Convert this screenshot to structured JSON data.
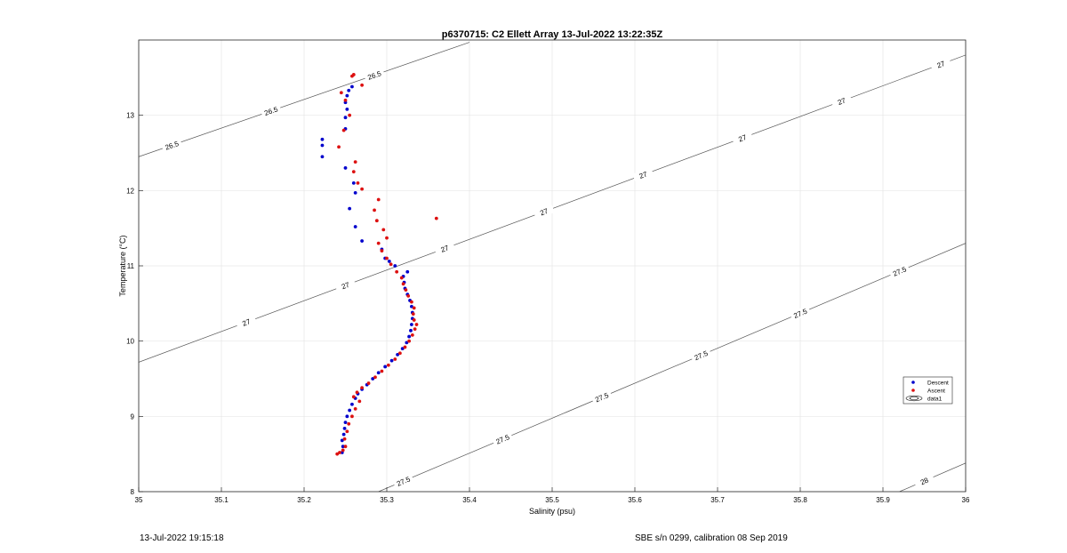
{
  "chart_data": {
    "type": "scatter",
    "title": "p6370715: C2 Ellett Array 13-Jul-2022 13:22:35Z",
    "xlabel": "Salinity (psu)",
    "ylabel": "Temperature (°C)",
    "xlim": [
      35,
      36
    ],
    "ylim": [
      8,
      14
    ],
    "x_ticks": [
      35,
      35.1,
      35.2,
      35.3,
      35.4,
      35.5,
      35.6,
      35.7,
      35.8,
      35.9,
      36
    ],
    "x_tick_labels": [
      "35",
      "35.1",
      "35.2",
      "35.3",
      "35.4",
      "35.5",
      "35.6",
      "35.7",
      "35.8",
      "35.9",
      "36"
    ],
    "y_ticks": [
      8,
      9,
      10,
      11,
      12,
      13
    ],
    "y_tick_labels": [
      "8",
      "9",
      "10",
      "11",
      "12",
      "13"
    ],
    "grid": true,
    "legend_position": "right",
    "legend": [
      {
        "label": "Descent",
        "color": "#0000cc",
        "kind": "dot"
      },
      {
        "label": "Ascent",
        "color": "#dd1111",
        "kind": "dot"
      },
      {
        "label": "data1",
        "color": "#000000",
        "kind": "contour"
      }
    ],
    "contours": [
      {
        "label": "26.5",
        "points": [
          [
            35.0,
            12.45
          ],
          [
            35.4,
            13.97
          ]
        ],
        "label_x": [
          35.04,
          35.16,
          35.285
        ]
      },
      {
        "label": "27",
        "points": [
          [
            35.0,
            9.72
          ],
          [
            36.0,
            13.8
          ]
        ],
        "label_x": [
          35.13,
          35.25,
          35.37,
          35.49,
          35.61,
          35.73,
          35.85,
          35.97
        ]
      },
      {
        "label": "27.5",
        "points": [
          [
            35.29,
            8.0
          ],
          [
            36.0,
            11.3
          ]
        ],
        "label_x": [
          35.32,
          35.44,
          35.56,
          35.68,
          35.8,
          35.92
        ]
      },
      {
        "label": "28",
        "points": [
          [
            35.92,
            8.0
          ],
          [
            36.0,
            8.38
          ]
        ],
        "label_x": [
          35.95
        ]
      }
    ],
    "series": [
      {
        "name": "Descent",
        "color": "#0000cc",
        "points": [
          [
            35.246,
            8.52
          ],
          [
            35.247,
            8.6
          ],
          [
            35.246,
            8.68
          ],
          [
            35.248,
            8.76
          ],
          [
            35.249,
            8.84
          ],
          [
            35.25,
            8.92
          ],
          [
            35.252,
            9.0
          ],
          [
            35.255,
            9.08
          ],
          [
            35.258,
            9.16
          ],
          [
            35.262,
            9.24
          ],
          [
            35.265,
            9.3
          ],
          [
            35.27,
            9.36
          ],
          [
            35.276,
            9.42
          ],
          [
            35.283,
            9.5
          ],
          [
            35.29,
            9.58
          ],
          [
            35.298,
            9.66
          ],
          [
            35.306,
            9.74
          ],
          [
            35.313,
            9.82
          ],
          [
            35.319,
            9.9
          ],
          [
            35.324,
            9.98
          ],
          [
            35.327,
            10.06
          ],
          [
            35.329,
            10.14
          ],
          [
            35.33,
            10.22
          ],
          [
            35.331,
            10.3
          ],
          [
            35.331,
            10.38
          ],
          [
            35.33,
            10.46
          ],
          [
            35.328,
            10.54
          ],
          [
            35.325,
            10.62
          ],
          [
            35.322,
            10.7
          ],
          [
            35.321,
            10.78
          ],
          [
            35.32,
            10.86
          ],
          [
            35.325,
            10.92
          ],
          [
            35.31,
            11.0
          ],
          [
            35.303,
            11.06
          ],
          [
            35.298,
            11.1
          ],
          [
            35.294,
            11.22
          ],
          [
            35.27,
            11.33
          ],
          [
            35.262,
            11.52
          ],
          [
            35.255,
            11.76
          ],
          [
            35.262,
            11.97
          ],
          [
            35.26,
            12.1
          ],
          [
            35.25,
            12.3
          ],
          [
            35.222,
            12.45
          ],
          [
            35.222,
            12.6
          ],
          [
            35.222,
            12.68
          ],
          [
            35.25,
            12.82
          ],
          [
            35.25,
            12.97
          ],
          [
            35.252,
            13.08
          ],
          [
            35.25,
            13.17
          ],
          [
            35.252,
            13.26
          ],
          [
            35.254,
            13.33
          ],
          [
            35.258,
            13.38
          ]
        ]
      },
      {
        "name": "Ascent",
        "color": "#dd1111",
        "points": [
          [
            35.24,
            8.5
          ],
          [
            35.243,
            8.52
          ],
          [
            35.247,
            8.55
          ],
          [
            35.25,
            8.6
          ],
          [
            35.249,
            8.7
          ],
          [
            35.252,
            8.8
          ],
          [
            35.254,
            8.9
          ],
          [
            35.258,
            9.0
          ],
          [
            35.262,
            9.1
          ],
          [
            35.267,
            9.2
          ],
          [
            35.26,
            9.26
          ],
          [
            35.264,
            9.32
          ],
          [
            35.27,
            9.38
          ],
          [
            35.278,
            9.44
          ],
          [
            35.286,
            9.52
          ],
          [
            35.294,
            9.6
          ],
          [
            35.302,
            9.68
          ],
          [
            35.31,
            9.76
          ],
          [
            35.316,
            9.84
          ],
          [
            35.322,
            9.92
          ],
          [
            35.327,
            10.0
          ],
          [
            35.331,
            10.08
          ],
          [
            35.334,
            10.16
          ],
          [
            35.336,
            10.22
          ],
          [
            35.333,
            10.28
          ],
          [
            35.332,
            10.36
          ],
          [
            35.333,
            10.44
          ],
          [
            35.33,
            10.52
          ],
          [
            35.326,
            10.6
          ],
          [
            35.323,
            10.68
          ],
          [
            35.32,
            10.76
          ],
          [
            35.318,
            10.84
          ],
          [
            35.312,
            10.92
          ],
          [
            35.305,
            11.02
          ],
          [
            35.3,
            11.1
          ],
          [
            35.294,
            11.2
          ],
          [
            35.29,
            11.3
          ],
          [
            35.3,
            11.37
          ],
          [
            35.296,
            11.48
          ],
          [
            35.288,
            11.6
          ],
          [
            35.36,
            11.63
          ],
          [
            35.285,
            11.74
          ],
          [
            35.29,
            11.88
          ],
          [
            35.27,
            12.02
          ],
          [
            35.265,
            12.1
          ],
          [
            35.26,
            12.25
          ],
          [
            35.262,
            12.38
          ],
          [
            35.242,
            12.58
          ],
          [
            35.248,
            12.8
          ],
          [
            35.255,
            13.0
          ],
          [
            35.25,
            13.2
          ],
          [
            35.245,
            13.3
          ],
          [
            35.27,
            13.4
          ],
          [
            35.258,
            13.52
          ],
          [
            35.26,
            13.54
          ]
        ]
      }
    ]
  },
  "footer": {
    "left": "13-Jul-2022 19:15:18",
    "right": "SBE s/n 0299, calibration 08 Sep 2019"
  }
}
